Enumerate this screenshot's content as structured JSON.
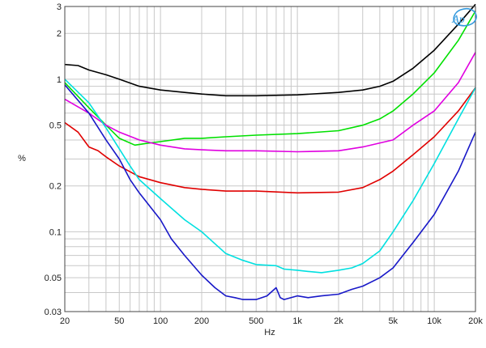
{
  "chart_data": {
    "type": "line",
    "xlabel": "Hz",
    "ylabel": "%",
    "x_scale": "log",
    "y_scale": "log",
    "xlim": [
      20,
      20000
    ],
    "ylim": [
      0.03,
      3
    ],
    "grid": true,
    "x_ticks": [
      {
        "v": 20,
        "label": "20"
      },
      {
        "v": 50,
        "label": "50"
      },
      {
        "v": 100,
        "label": "100"
      },
      {
        "v": 200,
        "label": "200"
      },
      {
        "v": 500,
        "label": "500"
      },
      {
        "v": 1000,
        "label": "1k"
      },
      {
        "v": 2000,
        "label": "2k"
      },
      {
        "v": 5000,
        "label": "5k"
      },
      {
        "v": 10000,
        "label": "10k"
      },
      {
        "v": 20000,
        "label": "20k"
      }
    ],
    "y_ticks": [
      {
        "v": 0.03,
        "label": "0.03"
      },
      {
        "v": 0.05,
        "label": "0.05"
      },
      {
        "v": 0.1,
        "label": "0.1"
      },
      {
        "v": 0.2,
        "label": "0.2"
      },
      {
        "v": 0.5,
        "label": "0.5"
      },
      {
        "v": 1,
        "label": "1"
      },
      {
        "v": 2,
        "label": "2"
      },
      {
        "v": 3,
        "label": "3"
      }
    ],
    "series": [
      {
        "color": "#000000",
        "points": [
          [
            20,
            1.25
          ],
          [
            25,
            1.23
          ],
          [
            30,
            1.15
          ],
          [
            40,
            1.07
          ],
          [
            50,
            1.0
          ],
          [
            70,
            0.9
          ],
          [
            100,
            0.85
          ],
          [
            150,
            0.82
          ],
          [
            200,
            0.8
          ],
          [
            300,
            0.78
          ],
          [
            500,
            0.78
          ],
          [
            1000,
            0.79
          ],
          [
            2000,
            0.82
          ],
          [
            3000,
            0.85
          ],
          [
            4000,
            0.9
          ],
          [
            5000,
            0.97
          ],
          [
            7000,
            1.18
          ],
          [
            10000,
            1.55
          ],
          [
            15000,
            2.3
          ],
          [
            20000,
            3.1
          ]
        ]
      },
      {
        "color": "#00e000",
        "points": [
          [
            20,
            0.95
          ],
          [
            30,
            0.65
          ],
          [
            40,
            0.5
          ],
          [
            50,
            0.41
          ],
          [
            65,
            0.37
          ],
          [
            80,
            0.38
          ],
          [
            100,
            0.39
          ],
          [
            150,
            0.41
          ],
          [
            200,
            0.41
          ],
          [
            300,
            0.42
          ],
          [
            500,
            0.43
          ],
          [
            1000,
            0.44
          ],
          [
            2000,
            0.46
          ],
          [
            3000,
            0.5
          ],
          [
            4000,
            0.55
          ],
          [
            5000,
            0.62
          ],
          [
            7000,
            0.8
          ],
          [
            10000,
            1.1
          ],
          [
            15000,
            1.8
          ],
          [
            20000,
            2.8
          ]
        ]
      },
      {
        "color": "#e000e0",
        "points": [
          [
            20,
            0.74
          ],
          [
            30,
            0.6
          ],
          [
            40,
            0.5
          ],
          [
            50,
            0.45
          ],
          [
            70,
            0.4
          ],
          [
            100,
            0.37
          ],
          [
            150,
            0.35
          ],
          [
            200,
            0.345
          ],
          [
            300,
            0.34
          ],
          [
            500,
            0.34
          ],
          [
            1000,
            0.335
          ],
          [
            2000,
            0.34
          ],
          [
            3000,
            0.36
          ],
          [
            5000,
            0.4
          ],
          [
            7000,
            0.5
          ],
          [
            10000,
            0.62
          ],
          [
            15000,
            0.95
          ],
          [
            20000,
            1.5
          ]
        ]
      },
      {
        "color": "#e00000",
        "points": [
          [
            20,
            0.52
          ],
          [
            25,
            0.45
          ],
          [
            30,
            0.36
          ],
          [
            35,
            0.34
          ],
          [
            40,
            0.31
          ],
          [
            50,
            0.27
          ],
          [
            70,
            0.23
          ],
          [
            100,
            0.21
          ],
          [
            150,
            0.195
          ],
          [
            200,
            0.19
          ],
          [
            300,
            0.185
          ],
          [
            500,
            0.185
          ],
          [
            1000,
            0.18
          ],
          [
            2000,
            0.182
          ],
          [
            3000,
            0.195
          ],
          [
            4000,
            0.22
          ],
          [
            5000,
            0.25
          ],
          [
            7000,
            0.32
          ],
          [
            10000,
            0.42
          ],
          [
            15000,
            0.62
          ],
          [
            20000,
            0.88
          ]
        ]
      },
      {
        "color": "#00e0e0",
        "points": [
          [
            20,
            1.0
          ],
          [
            30,
            0.7
          ],
          [
            40,
            0.48
          ],
          [
            50,
            0.35
          ],
          [
            60,
            0.27
          ],
          [
            70,
            0.22
          ],
          [
            100,
            0.165
          ],
          [
            150,
            0.12
          ],
          [
            200,
            0.1
          ],
          [
            300,
            0.072
          ],
          [
            400,
            0.065
          ],
          [
            500,
            0.061
          ],
          [
            700,
            0.06
          ],
          [
            800,
            0.057
          ],
          [
            1000,
            0.056
          ],
          [
            1200,
            0.055
          ],
          [
            1500,
            0.054
          ],
          [
            2000,
            0.056
          ],
          [
            2500,
            0.058
          ],
          [
            3000,
            0.062
          ],
          [
            4000,
            0.075
          ],
          [
            5000,
            0.1
          ],
          [
            7000,
            0.16
          ],
          [
            10000,
            0.28
          ],
          [
            15000,
            0.55
          ],
          [
            20000,
            0.88
          ]
        ]
      },
      {
        "color": "#1818c8",
        "points": [
          [
            20,
            0.92
          ],
          [
            30,
            0.6
          ],
          [
            40,
            0.4
          ],
          [
            50,
            0.3
          ],
          [
            60,
            0.22
          ],
          [
            70,
            0.18
          ],
          [
            100,
            0.12
          ],
          [
            120,
            0.09
          ],
          [
            150,
            0.07
          ],
          [
            200,
            0.052
          ],
          [
            250,
            0.043
          ],
          [
            300,
            0.038
          ],
          [
            350,
            0.037
          ],
          [
            400,
            0.036
          ],
          [
            500,
            0.036
          ],
          [
            600,
            0.038
          ],
          [
            700,
            0.043
          ],
          [
            750,
            0.037
          ],
          [
            800,
            0.036
          ],
          [
            1000,
            0.038
          ],
          [
            1200,
            0.037
          ],
          [
            1500,
            0.038
          ],
          [
            2000,
            0.039
          ],
          [
            2500,
            0.042
          ],
          [
            3000,
            0.044
          ],
          [
            4000,
            0.05
          ],
          [
            5000,
            0.058
          ],
          [
            7000,
            0.085
          ],
          [
            10000,
            0.13
          ],
          [
            15000,
            0.25
          ],
          [
            20000,
            0.45
          ]
        ]
      }
    ]
  }
}
